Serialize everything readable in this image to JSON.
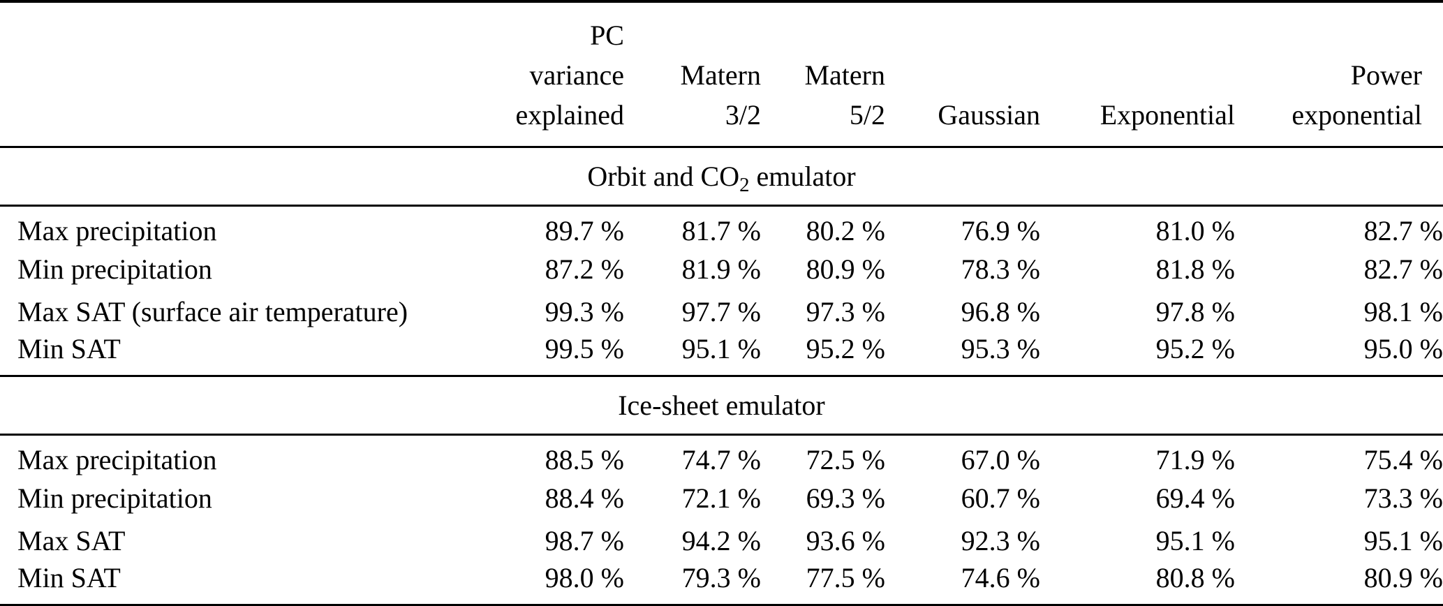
{
  "page": {
    "background_color": "#ffffff",
    "text_color": "#000000"
  },
  "table": {
    "headers": [
      {
        "label": "PC\nvariance\nexplained"
      },
      {
        "label": "Matern\n3/2"
      },
      {
        "label": "Matern\n5/2"
      },
      {
        "label": "Gaussian"
      },
      {
        "label": "Exponential"
      },
      {
        "label": "Power\nexponential"
      }
    ],
    "sections": [
      {
        "title_prefix": "Orbit and CO",
        "title_sub": "2",
        "title_suffix": " emulator",
        "rows": [
          {
            "label": "Max precipitation",
            "values": [
              "89.7 %",
              "81.7 %",
              "80.2 %",
              "76.9 %",
              "81.0 %",
              "82.7 %"
            ]
          },
          {
            "label": "Min precipitation",
            "values": [
              "87.2 %",
              "81.9 %",
              "80.9 %",
              "78.3 %",
              "81.8 %",
              "82.7 %"
            ]
          },
          {
            "label": "Max SAT (surface air temperature)",
            "values": [
              "99.3 %",
              "97.7 %",
              "97.3 %",
              "96.8 %",
              "97.8 %",
              "98.1 %"
            ]
          },
          {
            "label": "Min SAT",
            "values": [
              "99.5 %",
              "95.1 %",
              "95.2 %",
              "95.3 %",
              "95.2 %",
              "95.0 %"
            ]
          }
        ]
      },
      {
        "title_prefix": "Ice-sheet emulator",
        "title_sub": "",
        "title_suffix": "",
        "rows": [
          {
            "label": "Max precipitation",
            "values": [
              "88.5 %",
              "74.7 %",
              "72.5 %",
              "67.0 %",
              "71.9 %",
              "75.4 %"
            ]
          },
          {
            "label": "Min precipitation",
            "values": [
              "88.4 %",
              "72.1 %",
              "69.3 %",
              "60.7 %",
              "69.4 %",
              "73.3 %"
            ]
          },
          {
            "label": "Max SAT",
            "values": [
              "98.7 %",
              "94.2 %",
              "93.6 %",
              "92.3 %",
              "95.1 %",
              "95.1 %"
            ]
          },
          {
            "label": "Min SAT",
            "values": [
              "98.0 %",
              "79.3 %",
              "77.5 %",
              "74.6 %",
              "80.8 %",
              "80.9 %"
            ]
          }
        ]
      }
    ]
  }
}
